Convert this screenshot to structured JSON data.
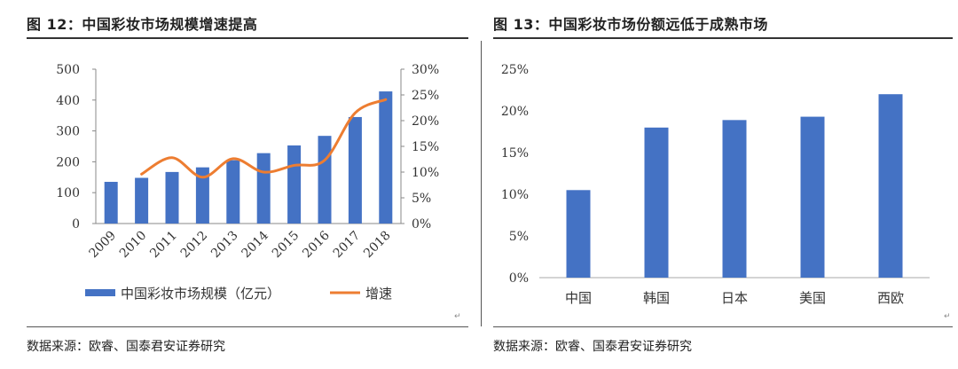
{
  "figures": {
    "left_title": "图 12：中国彩妆市场规模增速提高",
    "right_title": "图 13：中国彩妆市场份额远低于成熟市场",
    "left_source": "数据来源：欧睿、国泰君安证券研究",
    "right_source": "数据来源：欧睿、国泰君安证券研究",
    "para_mark": "↵"
  },
  "colors": {
    "bar": "#4472C4",
    "line": "#ED7D31"
  },
  "chart_data": [
    {
      "type": "bar+line",
      "categories": [
        "2009",
        "2010",
        "2011",
        "2012",
        "2013",
        "2014",
        "2015",
        "2016",
        "2017",
        "2018"
      ],
      "series": [
        {
          "name": "中国彩妆市场规模（亿元）",
          "type": "bar",
          "axis": "left",
          "values": [
            135,
            148,
            167,
            182,
            205,
            228,
            253,
            284,
            345,
            428
          ]
        },
        {
          "name": "增速",
          "type": "line",
          "axis": "right",
          "values": [
            null,
            9.6,
            12.8,
            9.0,
            12.6,
            10.0,
            11.3,
            12.3,
            21.5,
            24.1
          ]
        }
      ],
      "y_left": {
        "ylim": [
          0,
          500
        ],
        "ticks": [
          "0",
          "100",
          "200",
          "300",
          "400",
          "500"
        ]
      },
      "y_right": {
        "ylim": [
          0,
          30
        ],
        "ticks": [
          "0%",
          "5%",
          "10%",
          "15%",
          "20%",
          "25%",
          "30%"
        ]
      },
      "legend": {
        "position": "bottom"
      },
      "grid": false
    },
    {
      "type": "bar",
      "categories": [
        "中国",
        "韩国",
        "日本",
        "美国",
        "西欧"
      ],
      "values": [
        10.5,
        18.0,
        18.9,
        19.3,
        22.0
      ],
      "unit": "%",
      "ylim": [
        0,
        25
      ],
      "ticks": [
        "0%",
        "5%",
        "10%",
        "15%",
        "20%",
        "25%"
      ],
      "grid": false
    }
  ]
}
